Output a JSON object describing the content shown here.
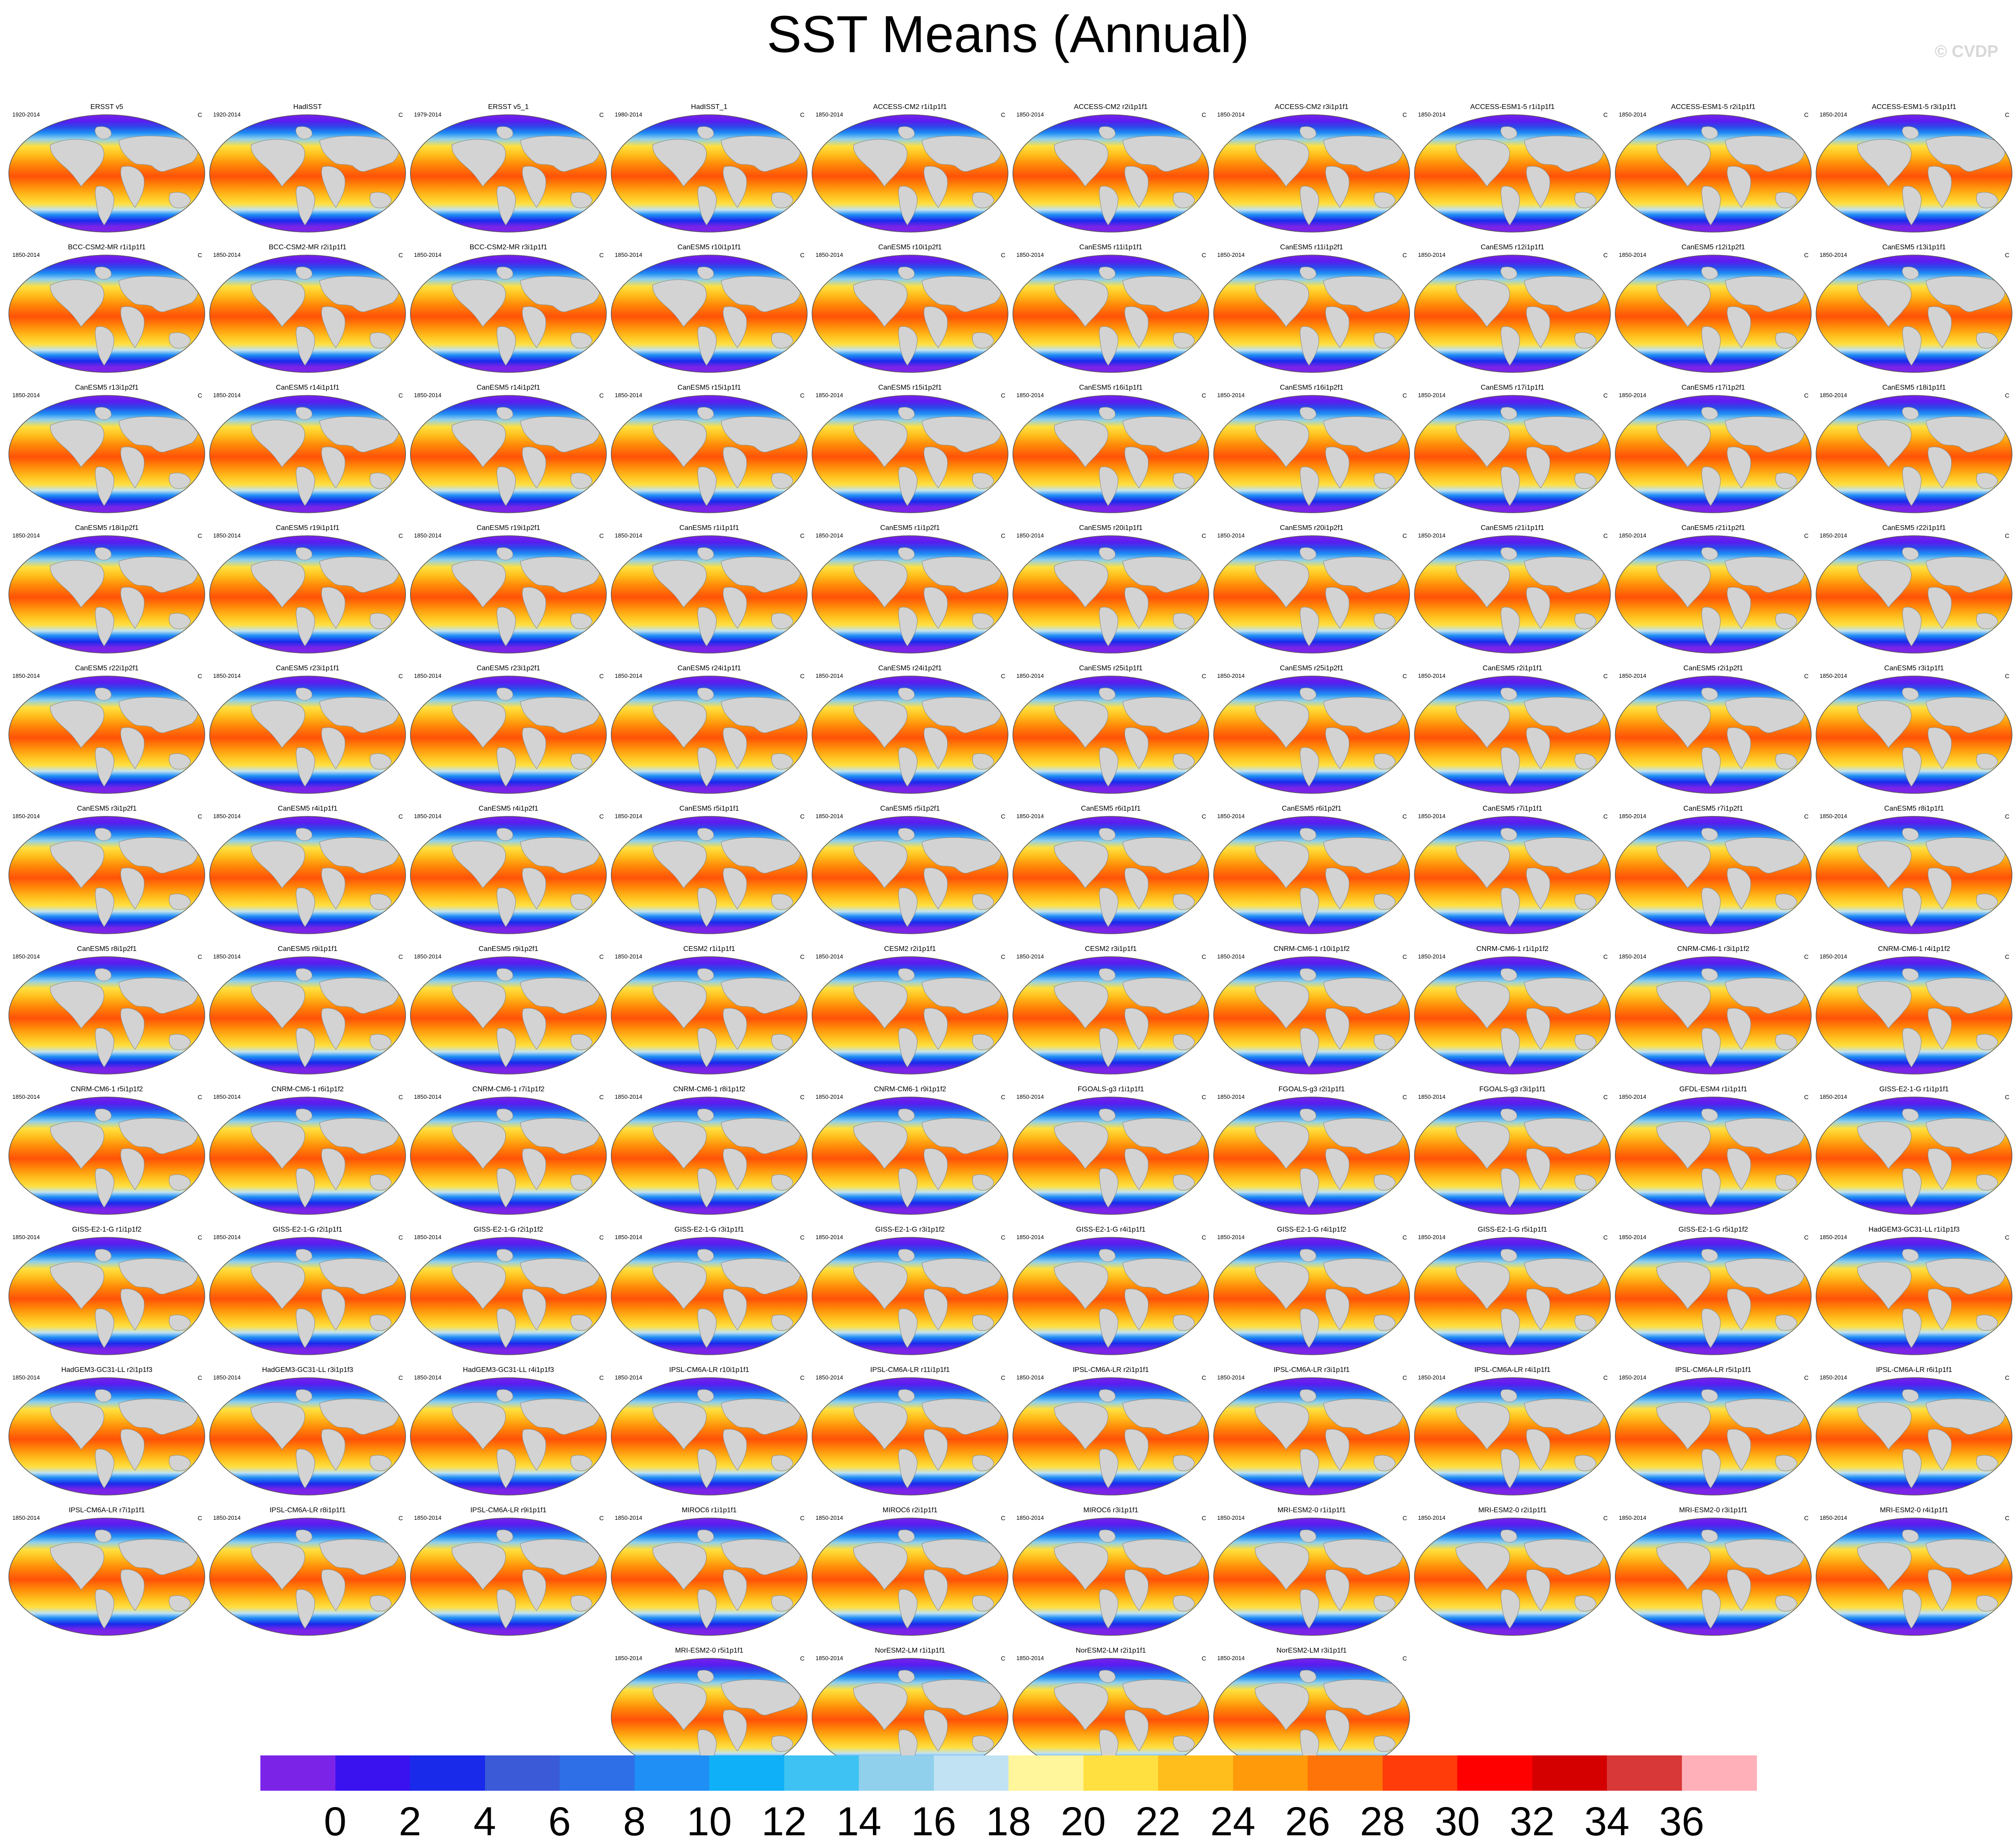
{
  "title": "SST Means (Annual)",
  "watermark": "© CVDP",
  "chart_data": {
    "type": "map-grid",
    "title": "SST Means (Annual)",
    "units": "C",
    "panels": [
      {
        "name": "ERSST v5",
        "period": "1920-2014",
        "units": "C"
      },
      {
        "name": "HadISST",
        "period": "1920-2014",
        "units": "C"
      },
      {
        "name": "ERSST v5_1",
        "period": "1979-2014",
        "units": "C"
      },
      {
        "name": "HadISST_1",
        "period": "1980-2014",
        "units": "C"
      },
      {
        "name": "ACCESS-CM2 r1i1p1f1",
        "period": "1850-2014",
        "units": "C"
      },
      {
        "name": "ACCESS-CM2 r2i1p1f1",
        "period": "1850-2014",
        "units": "C"
      },
      {
        "name": "ACCESS-CM2 r3i1p1f1",
        "period": "1850-2014",
        "units": "C"
      },
      {
        "name": "ACCESS-ESM1-5 r1i1p1f1",
        "period": "1850-2014",
        "units": "C"
      },
      {
        "name": "ACCESS-ESM1-5 r2i1p1f1",
        "period": "1850-2014",
        "units": "C"
      },
      {
        "name": "ACCESS-ESM1-5 r3i1p1f1",
        "period": "1850-2014",
        "units": "C"
      },
      {
        "name": "BCC-CSM2-MR r1i1p1f1",
        "period": "1850-2014",
        "units": "C"
      },
      {
        "name": "BCC-CSM2-MR r2i1p1f1",
        "period": "1850-2014",
        "units": "C"
      },
      {
        "name": "BCC-CSM2-MR r3i1p1f1",
        "period": "1850-2014",
        "units": "C"
      },
      {
        "name": "CanESM5 r10i1p1f1",
        "period": "1850-2014",
        "units": "C"
      },
      {
        "name": "CanESM5 r10i1p2f1",
        "period": "1850-2014",
        "units": "C"
      },
      {
        "name": "CanESM5 r11i1p1f1",
        "period": "1850-2014",
        "units": "C"
      },
      {
        "name": "CanESM5 r11i1p2f1",
        "period": "1850-2014",
        "units": "C"
      },
      {
        "name": "CanESM5 r12i1p1f1",
        "period": "1850-2014",
        "units": "C"
      },
      {
        "name": "CanESM5 r12i1p2f1",
        "period": "1850-2014",
        "units": "C"
      },
      {
        "name": "CanESM5 r13i1p1f1",
        "period": "1850-2014",
        "units": "C"
      },
      {
        "name": "CanESM5 r13i1p2f1",
        "period": "1850-2014",
        "units": "C"
      },
      {
        "name": "CanESM5 r14i1p1f1",
        "period": "1850-2014",
        "units": "C"
      },
      {
        "name": "CanESM5 r14i1p2f1",
        "period": "1850-2014",
        "units": "C"
      },
      {
        "name": "CanESM5 r15i1p1f1",
        "period": "1850-2014",
        "units": "C"
      },
      {
        "name": "CanESM5 r15i1p2f1",
        "period": "1850-2014",
        "units": "C"
      },
      {
        "name": "CanESM5 r16i1p1f1",
        "period": "1850-2014",
        "units": "C"
      },
      {
        "name": "CanESM5 r16i1p2f1",
        "period": "1850-2014",
        "units": "C"
      },
      {
        "name": "CanESM5 r17i1p1f1",
        "period": "1850-2014",
        "units": "C"
      },
      {
        "name": "CanESM5 r17i1p2f1",
        "period": "1850-2014",
        "units": "C"
      },
      {
        "name": "CanESM5 r18i1p1f1",
        "period": "1850-2014",
        "units": "C"
      },
      {
        "name": "CanESM5 r18i1p2f1",
        "period": "1850-2014",
        "units": "C"
      },
      {
        "name": "CanESM5 r19i1p1f1",
        "period": "1850-2014",
        "units": "C"
      },
      {
        "name": "CanESM5 r19i1p2f1",
        "period": "1850-2014",
        "units": "C"
      },
      {
        "name": "CanESM5 r1i1p1f1",
        "period": "1850-2014",
        "units": "C"
      },
      {
        "name": "CanESM5 r1i1p2f1",
        "period": "1850-2014",
        "units": "C"
      },
      {
        "name": "CanESM5 r20i1p1f1",
        "period": "1850-2014",
        "units": "C"
      },
      {
        "name": "CanESM5 r20i1p2f1",
        "period": "1850-2014",
        "units": "C"
      },
      {
        "name": "CanESM5 r21i1p1f1",
        "period": "1850-2014",
        "units": "C"
      },
      {
        "name": "CanESM5 r21i1p2f1",
        "period": "1850-2014",
        "units": "C"
      },
      {
        "name": "CanESM5 r22i1p1f1",
        "period": "1850-2014",
        "units": "C"
      },
      {
        "name": "CanESM5 r22i1p2f1",
        "period": "1850-2014",
        "units": "C"
      },
      {
        "name": "CanESM5 r23i1p1f1",
        "period": "1850-2014",
        "units": "C"
      },
      {
        "name": "CanESM5 r23i1p2f1",
        "period": "1850-2014",
        "units": "C"
      },
      {
        "name": "CanESM5 r24i1p1f1",
        "period": "1850-2014",
        "units": "C"
      },
      {
        "name": "CanESM5 r24i1p2f1",
        "period": "1850-2014",
        "units": "C"
      },
      {
        "name": "CanESM5 r25i1p1f1",
        "period": "1850-2014",
        "units": "C"
      },
      {
        "name": "CanESM5 r25i1p2f1",
        "period": "1850-2014",
        "units": "C"
      },
      {
        "name": "CanESM5 r2i1p1f1",
        "period": "1850-2014",
        "units": "C"
      },
      {
        "name": "CanESM5 r2i1p2f1",
        "period": "1850-2014",
        "units": "C"
      },
      {
        "name": "CanESM5 r3i1p1f1",
        "period": "1850-2014",
        "units": "C"
      },
      {
        "name": "CanESM5 r3i1p2f1",
        "period": "1850-2014",
        "units": "C"
      },
      {
        "name": "CanESM5 r4i1p1f1",
        "period": "1850-2014",
        "units": "C"
      },
      {
        "name": "CanESM5 r4i1p2f1",
        "period": "1850-2014",
        "units": "C"
      },
      {
        "name": "CanESM5 r5i1p1f1",
        "period": "1850-2014",
        "units": "C"
      },
      {
        "name": "CanESM5 r5i1p2f1",
        "period": "1850-2014",
        "units": "C"
      },
      {
        "name": "CanESM5 r6i1p1f1",
        "period": "1850-2014",
        "units": "C"
      },
      {
        "name": "CanESM5 r6i1p2f1",
        "period": "1850-2014",
        "units": "C"
      },
      {
        "name": "CanESM5 r7i1p1f1",
        "period": "1850-2014",
        "units": "C"
      },
      {
        "name": "CanESM5 r7i1p2f1",
        "period": "1850-2014",
        "units": "C"
      },
      {
        "name": "CanESM5 r8i1p1f1",
        "period": "1850-2014",
        "units": "C"
      },
      {
        "name": "CanESM5 r8i1p2f1",
        "period": "1850-2014",
        "units": "C"
      },
      {
        "name": "CanESM5 r9i1p1f1",
        "period": "1850-2014",
        "units": "C"
      },
      {
        "name": "CanESM5 r9i1p2f1",
        "period": "1850-2014",
        "units": "C"
      },
      {
        "name": "CESM2 r1i1p1f1",
        "period": "1850-2014",
        "units": "C"
      },
      {
        "name": "CESM2 r2i1p1f1",
        "period": "1850-2014",
        "units": "C"
      },
      {
        "name": "CESM2 r3i1p1f1",
        "period": "1850-2014",
        "units": "C"
      },
      {
        "name": "CNRM-CM6-1 r10i1p1f2",
        "period": "1850-2014",
        "units": "C"
      },
      {
        "name": "CNRM-CM6-1 r1i1p1f2",
        "period": "1850-2014",
        "units": "C"
      },
      {
        "name": "CNRM-CM6-1 r3i1p1f2",
        "period": "1850-2014",
        "units": "C"
      },
      {
        "name": "CNRM-CM6-1 r4i1p1f2",
        "period": "1850-2014",
        "units": "C"
      },
      {
        "name": "CNRM-CM6-1 r5i1p1f2",
        "period": "1850-2014",
        "units": "C"
      },
      {
        "name": "CNRM-CM6-1 r6i1p1f2",
        "period": "1850-2014",
        "units": "C"
      },
      {
        "name": "CNRM-CM6-1 r7i1p1f2",
        "period": "1850-2014",
        "units": "C"
      },
      {
        "name": "CNRM-CM6-1 r8i1p1f2",
        "period": "1850-2014",
        "units": "C"
      },
      {
        "name": "CNRM-CM6-1 r9i1p1f2",
        "period": "1850-2014",
        "units": "C"
      },
      {
        "name": "FGOALS-g3 r1i1p1f1",
        "period": "1850-2014",
        "units": "C"
      },
      {
        "name": "FGOALS-g3 r2i1p1f1",
        "period": "1850-2014",
        "units": "C"
      },
      {
        "name": "FGOALS-g3 r3i1p1f1",
        "period": "1850-2014",
        "units": "C"
      },
      {
        "name": "GFDL-ESM4 r1i1p1f1",
        "period": "1850-2014",
        "units": "C"
      },
      {
        "name": "GISS-E2-1-G r1i1p1f1",
        "period": "1850-2014",
        "units": "C"
      },
      {
        "name": "GISS-E2-1-G r1i1p1f2",
        "period": "1850-2014",
        "units": "C"
      },
      {
        "name": "GISS-E2-1-G r2i1p1f1",
        "period": "1850-2014",
        "units": "C"
      },
      {
        "name": "GISS-E2-1-G r2i1p1f2",
        "period": "1850-2014",
        "units": "C"
      },
      {
        "name": "GISS-E2-1-G r3i1p1f1",
        "period": "1850-2014",
        "units": "C"
      },
      {
        "name": "GISS-E2-1-G r3i1p1f2",
        "period": "1850-2014",
        "units": "C"
      },
      {
        "name": "GISS-E2-1-G r4i1p1f1",
        "period": "1850-2014",
        "units": "C"
      },
      {
        "name": "GISS-E2-1-G r4i1p1f2",
        "period": "1850-2014",
        "units": "C"
      },
      {
        "name": "GISS-E2-1-G r5i1p1f1",
        "period": "1850-2014",
        "units": "C"
      },
      {
        "name": "GISS-E2-1-G r5i1p1f2",
        "period": "1850-2014",
        "units": "C"
      },
      {
        "name": "HadGEM3-GC31-LL r1i1p1f3",
        "period": "1850-2014",
        "units": "C"
      },
      {
        "name": "HadGEM3-GC31-LL r2i1p1f3",
        "period": "1850-2014",
        "units": "C"
      },
      {
        "name": "HadGEM3-GC31-LL r3i1p1f3",
        "period": "1850-2014",
        "units": "C"
      },
      {
        "name": "HadGEM3-GC31-LL r4i1p1f3",
        "period": "1850-2014",
        "units": "C"
      },
      {
        "name": "IPSL-CM6A-LR r10i1p1f1",
        "period": "1850-2014",
        "units": "C"
      },
      {
        "name": "IPSL-CM6A-LR r11i1p1f1",
        "period": "1850-2014",
        "units": "C"
      },
      {
        "name": "IPSL-CM6A-LR r2i1p1f1",
        "period": "1850-2014",
        "units": "C"
      },
      {
        "name": "IPSL-CM6A-LR r3i1p1f1",
        "period": "1850-2014",
        "units": "C"
      },
      {
        "name": "IPSL-CM6A-LR r4i1p1f1",
        "period": "1850-2014",
        "units": "C"
      },
      {
        "name": "IPSL-CM6A-LR r5i1p1f1",
        "period": "1850-2014",
        "units": "C"
      },
      {
        "name": "IPSL-CM6A-LR r6i1p1f1",
        "period": "1850-2014",
        "units": "C"
      },
      {
        "name": "IPSL-CM6A-LR r7i1p1f1",
        "period": "1850-2014",
        "units": "C"
      },
      {
        "name": "IPSL-CM6A-LR r8i1p1f1",
        "period": "1850-2014",
        "units": "C"
      },
      {
        "name": "IPSL-CM6A-LR r9i1p1f1",
        "period": "1850-2014",
        "units": "C"
      },
      {
        "name": "MIROC6 r1i1p1f1",
        "period": "1850-2014",
        "units": "C"
      },
      {
        "name": "MIROC6 r2i1p1f1",
        "period": "1850-2014",
        "units": "C"
      },
      {
        "name": "MIROC6 r3i1p1f1",
        "period": "1850-2014",
        "units": "C"
      },
      {
        "name": "MRI-ESM2-0 r1i1p1f1",
        "period": "1850-2014",
        "units": "C"
      },
      {
        "name": "MRI-ESM2-0 r2i1p1f1",
        "period": "1850-2014",
        "units": "C"
      },
      {
        "name": "MRI-ESM2-0 r3i1p1f1",
        "period": "1850-2014",
        "units": "C"
      },
      {
        "name": "MRI-ESM2-0 r4i1p1f1",
        "period": "1850-2014",
        "units": "C"
      },
      {
        "name": "MRI-ESM2-0 r5i1p1f1",
        "period": "1850-2014",
        "units": "C"
      },
      {
        "name": "NorESM2-LM r1i1p1f1",
        "period": "1850-2014",
        "units": "C"
      },
      {
        "name": "NorESM2-LM r2i1p1f1",
        "period": "1850-2014",
        "units": "C"
      },
      {
        "name": "NorESM2-LM r3i1p1f1",
        "period": "1850-2014",
        "units": "C"
      }
    ],
    "colorbar": {
      "labels": [
        "0",
        "2",
        "4",
        "6",
        "8",
        "10",
        "12",
        "14",
        "16",
        "18",
        "20",
        "22",
        "24",
        "26",
        "28",
        "30",
        "32",
        "34",
        "36"
      ],
      "colors": [
        "#7b24e8",
        "#3a12f0",
        "#1a2aeb",
        "#3a5ad8",
        "#2e6fe8",
        "#1f8ef5",
        "#10b0f8",
        "#3ec2f3",
        "#90d0ec",
        "#c0e2f3",
        "#fff59a",
        "#ffe040",
        "#ffbe1c",
        "#ff9a0a",
        "#ff7408",
        "#ff3c0a",
        "#ff0000",
        "#d40000",
        "#d83838",
        "#ffb0b8"
      ]
    }
  }
}
